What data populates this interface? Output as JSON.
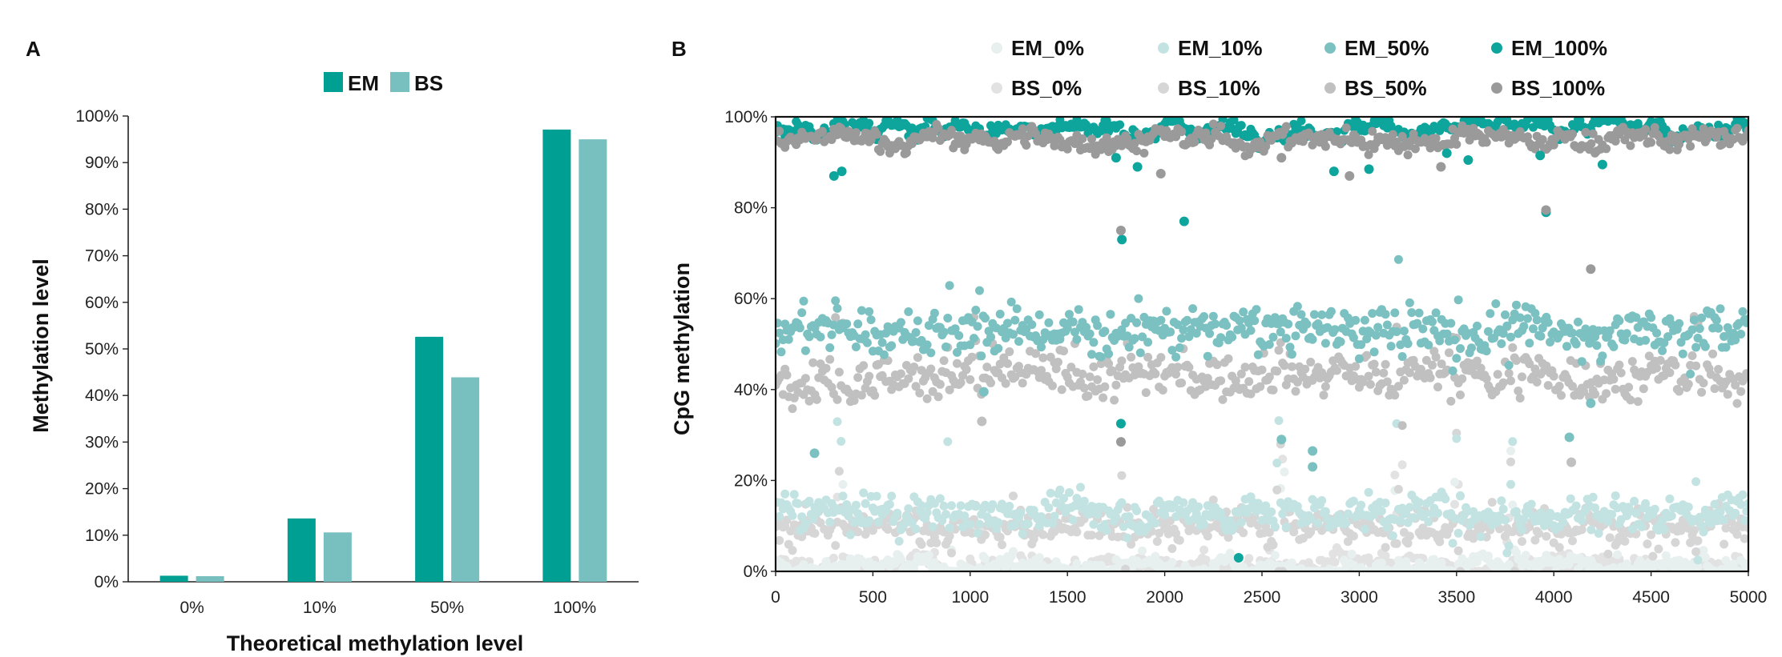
{
  "colors": {
    "em": "#009f94",
    "bs": "#78c0c0",
    "em_0": "#e7f0ef",
    "em_10": "#c3e3e3",
    "em_50": "#7cc1c1",
    "em_100": "#0da59c",
    "bs_0": "#e2e2e2",
    "bs_10": "#d6d6d6",
    "bs_50": "#c0c0c0",
    "bs_100": "#9a9a9a"
  },
  "chart_data": [
    {
      "panel": "A",
      "type": "bar",
      "title": "",
      "xlabel": "Theoretical methylation level",
      "ylabel": "Methylation level",
      "categories": [
        "0%",
        "10%",
        "50%",
        "100%"
      ],
      "series": [
        {
          "name": "EM",
          "values": [
            1.3,
            13.6,
            52.6,
            97.1
          ]
        },
        {
          "name": "BS",
          "values": [
            1.2,
            10.6,
            43.9,
            95.0
          ]
        }
      ],
      "ylim": [
        0,
        100
      ],
      "yticks": [
        "0%",
        "10%",
        "20%",
        "30%",
        "40%",
        "50%",
        "60%",
        "70%",
        "80%",
        "90%",
        "100%"
      ],
      "legend": {
        "position": "top-center",
        "entries": [
          "EM",
          "BS"
        ]
      }
    },
    {
      "panel": "B",
      "type": "scatter",
      "title": "",
      "xlabel": "",
      "ylabel": "CpG methylation",
      "xlim": [
        0,
        5000
      ],
      "ylim": [
        0,
        100
      ],
      "xticks": [
        "0",
        "500",
        "1000",
        "1500",
        "2000",
        "2500",
        "3000",
        "3500",
        "4000",
        "4500",
        "5000"
      ],
      "yticks": [
        "0%",
        "20%",
        "40%",
        "60%",
        "80%",
        "100%"
      ],
      "legend": {
        "position": "top",
        "entries": [
          "EM_0%",
          "EM_10%",
          "EM_50%",
          "EM_100%",
          "BS_0%",
          "BS_10%",
          "BS_50%",
          "BS_100%"
        ]
      },
      "series": [
        {
          "name": "EM_0%",
          "approx_mean": 1,
          "approx_spread": 1.5
        },
        {
          "name": "EM_10%",
          "approx_mean": 13,
          "approx_spread": 3
        },
        {
          "name": "EM_50%",
          "approx_mean": 53,
          "approx_spread": 4
        },
        {
          "name": "EM_100%",
          "approx_mean": 97.5,
          "approx_spread": 1
        },
        {
          "name": "BS_0%",
          "approx_mean": 1,
          "approx_spread": 1.5
        },
        {
          "name": "BS_10%",
          "approx_mean": 10,
          "approx_spread": 3
        },
        {
          "name": "BS_50%",
          "approx_mean": 43,
          "approx_spread": 4
        },
        {
          "name": "BS_100%",
          "approx_mean": 95,
          "approx_spread": 1.5
        }
      ],
      "outliers": [
        {
          "series": "EM_100%",
          "x": 300,
          "y": 87
        },
        {
          "series": "EM_100%",
          "x": 340,
          "y": 88
        },
        {
          "series": "EM_100%",
          "x": 1750,
          "y": 91
        },
        {
          "series": "EM_100%",
          "x": 1860,
          "y": 89
        },
        {
          "series": "EM_100%",
          "x": 2100,
          "y": 77
        },
        {
          "series": "EM_100%",
          "x": 1780,
          "y": 73
        },
        {
          "series": "EM_100%",
          "x": 2380,
          "y": 3
        },
        {
          "series": "EM_100%",
          "x": 2870,
          "y": 88
        },
        {
          "series": "EM_100%",
          "x": 3050,
          "y": 88.5
        },
        {
          "series": "EM_100%",
          "x": 3450,
          "y": 92
        },
        {
          "series": "EM_100%",
          "x": 3560,
          "y": 90.5
        },
        {
          "series": "EM_100%",
          "x": 3960,
          "y": 79
        },
        {
          "series": "EM_100%",
          "x": 3930,
          "y": 91.5
        },
        {
          "series": "EM_100%",
          "x": 4250,
          "y": 89.5
        },
        {
          "series": "EM_100%",
          "x": 1775,
          "y": 32.5
        },
        {
          "series": "BS_100%",
          "x": 1775,
          "y": 75
        },
        {
          "series": "BS_100%",
          "x": 1775,
          "y": 28.5
        },
        {
          "series": "BS_100%",
          "x": 2600,
          "y": 91
        },
        {
          "series": "BS_100%",
          "x": 2950,
          "y": 87
        },
        {
          "series": "BS_100%",
          "x": 3420,
          "y": 89
        },
        {
          "series": "BS_100%",
          "x": 3960,
          "y": 79.5
        },
        {
          "series": "BS_100%",
          "x": 4190,
          "y": 66.5
        },
        {
          "series": "BS_100%",
          "x": 1980,
          "y": 87.5
        },
        {
          "series": "EM_50%",
          "x": 1070,
          "y": 39.5
        },
        {
          "series": "EM_50%",
          "x": 4190,
          "y": 37
        },
        {
          "series": "EM_50%",
          "x": 4080,
          "y": 29.5
        },
        {
          "series": "EM_50%",
          "x": 2600,
          "y": 29
        },
        {
          "series": "EM_50%",
          "x": 2760,
          "y": 26.5
        },
        {
          "series": "EM_50%",
          "x": 2760,
          "y": 23
        },
        {
          "series": "EM_50%",
          "x": 200,
          "y": 26
        },
        {
          "series": "BS_50%",
          "x": 1060,
          "y": 33
        },
        {
          "series": "BS_50%",
          "x": 4090,
          "y": 24
        }
      ]
    }
  ]
}
